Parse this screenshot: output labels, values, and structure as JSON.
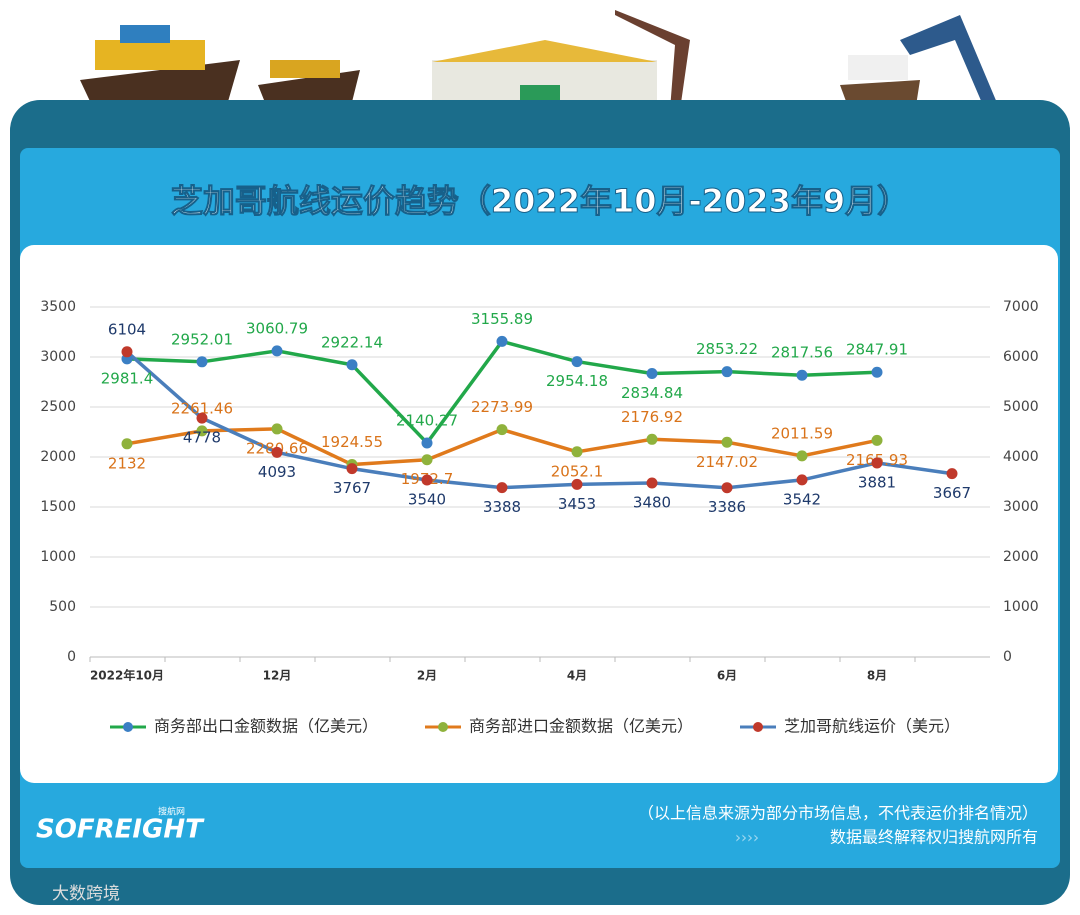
{
  "chart_data": {
    "type": "line",
    "title": "芝加哥航线运价趋势（2022年10月-2023年9月）",
    "categories": [
      "2022年10月",
      null,
      "12月",
      null,
      "2月",
      null,
      "4月",
      null,
      "6月",
      null,
      "8月",
      null
    ],
    "series": [
      {
        "name": "商务部出口金额数据（亿美元）",
        "color": "#22a84a",
        "marker_color": "#3b7fc4",
        "label_color": "#22a84a",
        "values": [
          2981.4,
          2952.01,
          3060.79,
          2922.14,
          2140.27,
          3155.89,
          2954.18,
          2834.84,
          2853.22,
          2817.56,
          2847.91,
          null
        ]
      },
      {
        "name": "商务部进口金额数据（亿美元）",
        "color": "#e07a1c",
        "marker_color": "#8fb23c",
        "label_color": "#d9731a",
        "values": [
          2132,
          2261.46,
          2280.66,
          1924.55,
          1972.7,
          2273.99,
          2052.1,
          2176.92,
          2147.02,
          2011.59,
          2165.93,
          null
        ]
      },
      {
        "name": "芝加哥航线运价（美元）",
        "color": "#4a7ebb",
        "marker_color": "#c0392b",
        "label_color": "#1f3a6b",
        "axis": "y2",
        "values": [
          6104,
          4778,
          4093,
          3767,
          3540,
          3388,
          3453,
          3480,
          3386,
          3542,
          3881,
          3667
        ]
      }
    ],
    "ylim": [
      0,
      3500
    ],
    "yticks": [
      0,
      500,
      1000,
      1500,
      2000,
      2500,
      3000,
      3500
    ],
    "y2lim": [
      0,
      7000
    ],
    "y2ticks": [
      0,
      1000,
      2000,
      3000,
      4000,
      5000,
      6000,
      7000
    ],
    "grid": true,
    "legend": "bottom"
  },
  "footer": {
    "note": "（以上信息来源为部分市场信息，不代表运价排名情况）",
    "rights": "数据最终解释权归搜航网所有",
    "arrows": "››››"
  },
  "logo": "SOFREIGHT",
  "logo_sub": "搜航网",
  "watermark": "大数跨境"
}
